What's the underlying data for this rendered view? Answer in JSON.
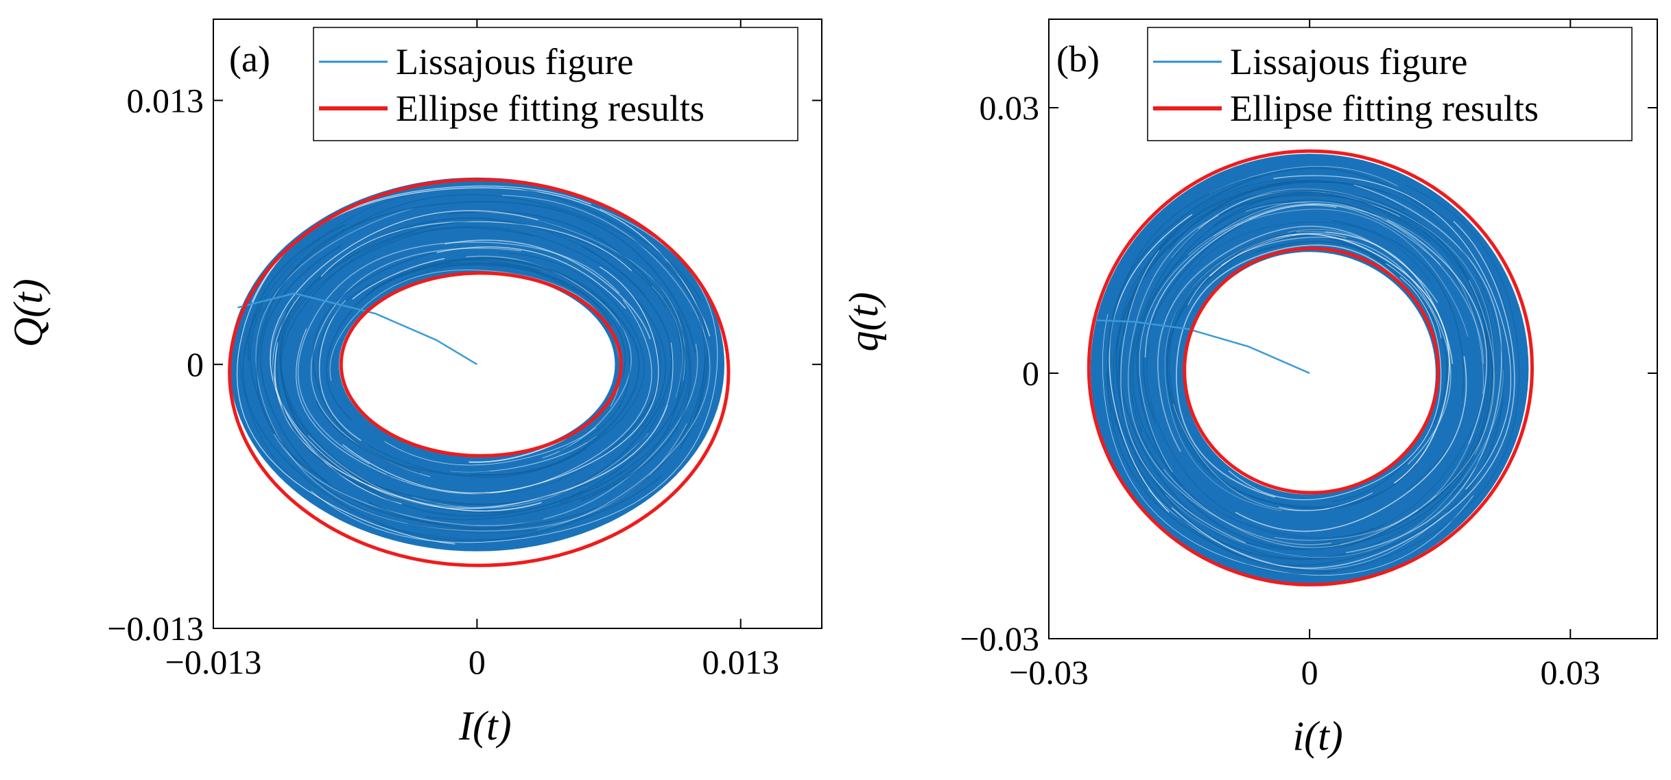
{
  "chart_data": [
    {
      "type": "scatter",
      "panel_label": "(a)",
      "xlabel": "I(t)",
      "ylabel": "Q(t)",
      "xlim": [
        -0.013,
        0.017
      ],
      "ylim": [
        -0.013,
        0.017
      ],
      "xticks": [
        -0.013,
        0,
        0.013
      ],
      "yticks": [
        -0.013,
        0,
        0.013
      ],
      "xtick_labels": [
        "−0.013",
        "0",
        "0.013"
      ],
      "ytick_labels": [
        "−0.013",
        "0",
        "0.013"
      ],
      "legend": {
        "position": "top-right",
        "entries": [
          {
            "label": "Lissajous figure",
            "color": "#2d8fd3"
          },
          {
            "label": "Ellipse fitting results",
            "color": "#ee1c1c"
          }
        ]
      },
      "series": [
        {
          "name": "Lissajous figure",
          "kind": "annulus-trace",
          "color": "#1f77bf",
          "outer": {
            "cx": 0,
            "cy": 0,
            "rx": 0.0122,
            "ry": 0.0092
          },
          "inner": {
            "cx": 0,
            "cy": 0,
            "rx": 0.0068,
            "ry": 0.0045
          },
          "transient": [
            [
              0,
              0
            ],
            [
              -0.002,
              0.0012
            ],
            [
              -0.005,
              0.0025
            ],
            [
              -0.009,
              0.0035
            ],
            [
              -0.0118,
              0.0028
            ]
          ]
        },
        {
          "name": "Ellipse fitting results",
          "kind": "ellipses",
          "color": "#ee1c1c",
          "ellipses": [
            {
              "cx": 0.0001,
              "cy": -0.0004,
              "rx": 0.0123,
              "ry": 0.0095
            },
            {
              "cx": 0.0002,
              "cy": 0.0,
              "rx": 0.0069,
              "ry": 0.0045
            }
          ]
        }
      ]
    },
    {
      "type": "scatter",
      "panel_label": "(b)",
      "xlabel": "i(t)",
      "ylabel": "q(t)",
      "xlim": [
        -0.03,
        0.04
      ],
      "ylim": [
        -0.03,
        0.04
      ],
      "xticks": [
        -0.03,
        0,
        0.03
      ],
      "yticks": [
        -0.03,
        0,
        0.03
      ],
      "xtick_labels": [
        "−0.03",
        "0",
        "0.03"
      ],
      "ytick_labels": [
        "−0.03",
        "0",
        "0.03"
      ],
      "legend": {
        "position": "top-right",
        "entries": [
          {
            "label": "Lissajous figure",
            "color": "#2d8fd3"
          },
          {
            "label": "Ellipse fitting results",
            "color": "#ee1c1c"
          }
        ]
      },
      "series": [
        {
          "name": "Lissajous figure",
          "kind": "annulus-trace",
          "color": "#1f77bf",
          "outer": {
            "cx": 0,
            "cy": 0.0005,
            "rx": 0.0252,
            "ry": 0.0243
          },
          "inner": {
            "cx": 0,
            "cy": 0,
            "rx": 0.0145,
            "ry": 0.0137
          },
          "transient": [
            [
              0,
              0
            ],
            [
              -0.007,
              0.003
            ],
            [
              -0.014,
              0.005
            ],
            [
              -0.02,
              0.0058
            ],
            [
              -0.025,
              0.006
            ]
          ]
        },
        {
          "name": "Ellipse fitting results",
          "kind": "ellipses",
          "color": "#ee1c1c",
          "ellipses": [
            {
              "cx": 0.0001,
              "cy": 0.0006,
              "rx": 0.0255,
              "ry": 0.0245
            },
            {
              "cx": 0.0002,
              "cy": 0.0003,
              "rx": 0.0146,
              "ry": 0.0138
            }
          ]
        }
      ]
    }
  ]
}
